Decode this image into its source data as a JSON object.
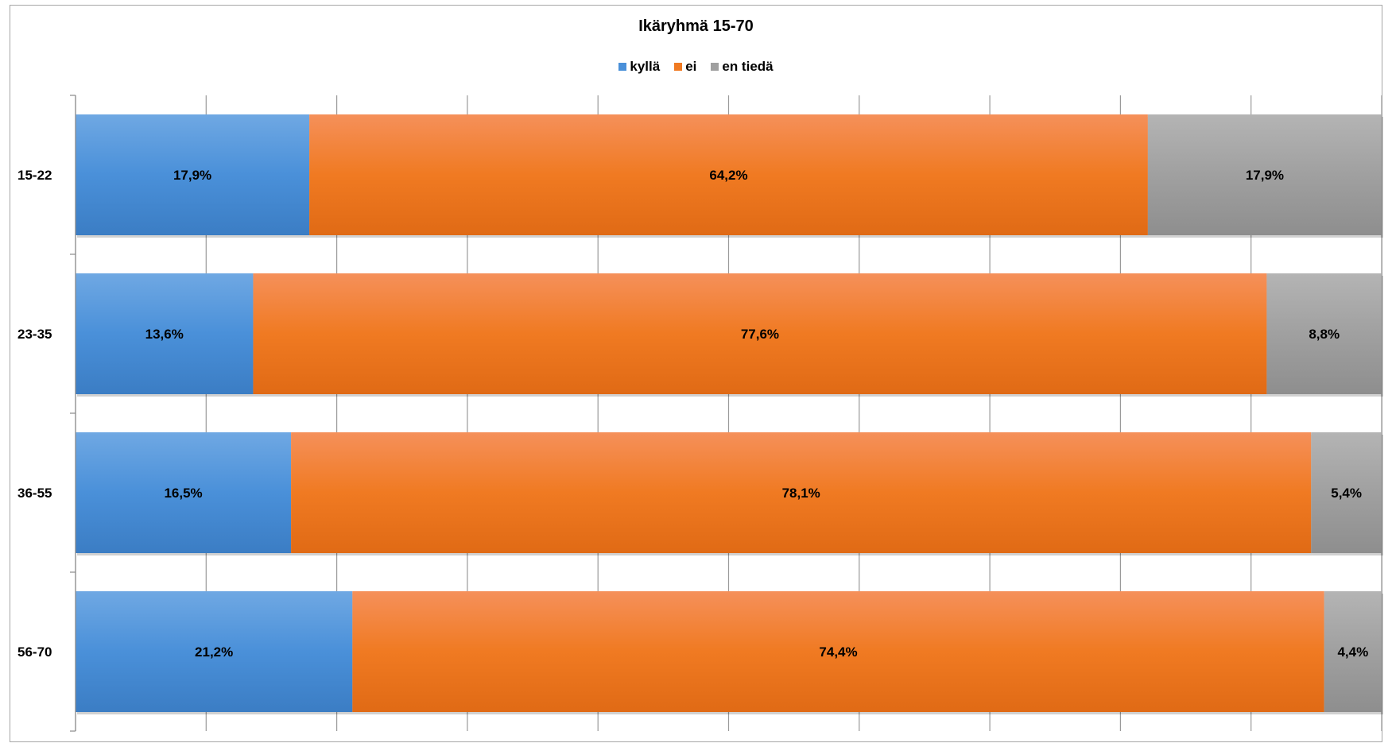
{
  "chart_data": {
    "type": "bar",
    "orientation": "horizontal",
    "stacked": "100%",
    "title": "Ikäryhmä 15-70",
    "categories": [
      "15-22",
      "23-35",
      "36-55",
      "56-70"
    ],
    "series": [
      {
        "name": "kyllä",
        "color": "#4a90d9",
        "values": [
          17.9,
          13.6,
          16.5,
          21.2
        ],
        "labels": [
          "17,9%",
          "13,6%",
          "16,5%",
          "21,2%"
        ]
      },
      {
        "name": "ei",
        "color": "#f07a22",
        "values": [
          64.2,
          77.6,
          78.1,
          74.4
        ],
        "labels": [
          "64,2%",
          "77,6%",
          "78,1%",
          "74,4%"
        ]
      },
      {
        "name": "en tiedä",
        "color": "#a0a0a0",
        "values": [
          17.9,
          8.8,
          5.4,
          4.4
        ],
        "labels": [
          "17,9%",
          "8,8%",
          "5,4%",
          "4,4%"
        ]
      }
    ],
    "xlim": [
      0,
      100
    ],
    "grid": true,
    "legend_position": "top"
  }
}
